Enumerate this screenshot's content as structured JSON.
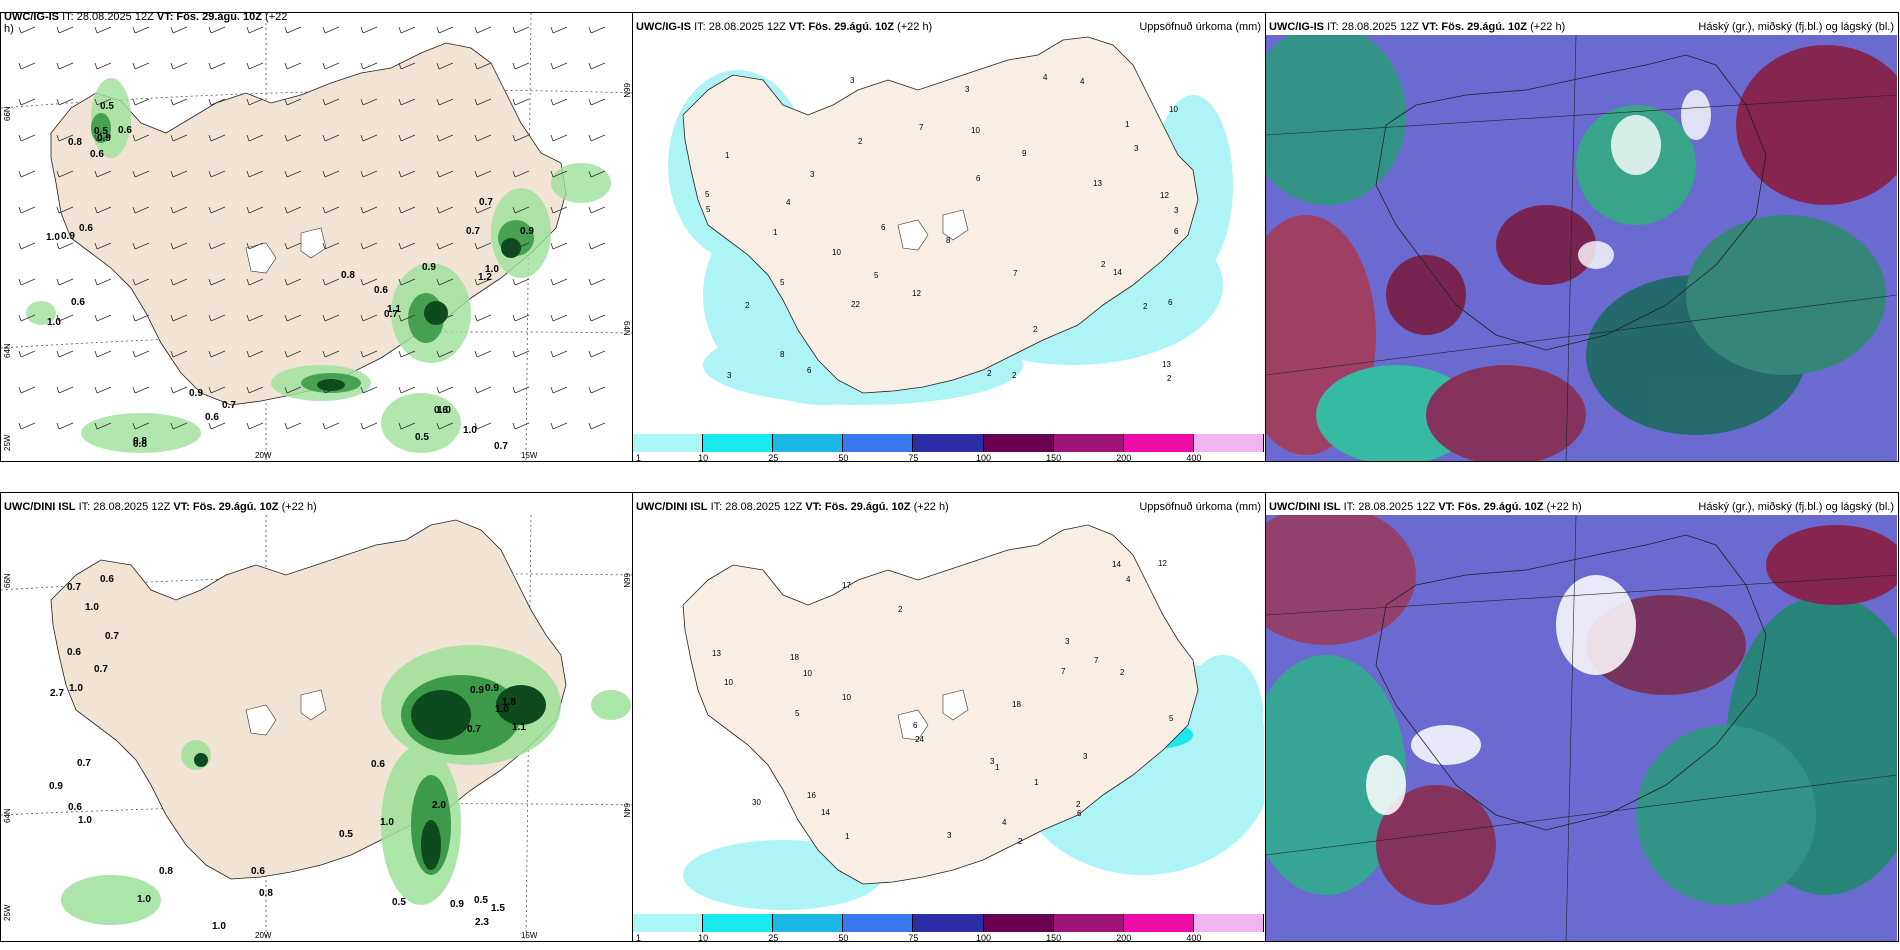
{
  "panels": {
    "top_left": {
      "header": {
        "model": "UWC/IG-IS",
        "it": "IT: 28.08.2025 12Z",
        "vt": "VT: Fös. 29.ágú. 10Z",
        "lead": "(+22",
        "lead2": "h)"
      },
      "axis": {
        "lat_top": "66N",
        "lat_mid": "64N",
        "lat_bot": "25W",
        "lon_1": "20W",
        "lon_2": "15W",
        "rlat_top": "66N",
        "rlat_mid": "64N"
      },
      "values": [
        "0.6",
        "1.0",
        "1.1",
        "0.8",
        "0.9",
        "0.5",
        "0.5",
        "0.9",
        "0.9",
        "0.6",
        "0.7",
        "0.7",
        "0.8",
        "0.6",
        "0.7",
        "0.7",
        "1.2",
        "0.6",
        "0.5",
        "1.0",
        "0.6",
        "0.8",
        "1.0",
        "1.0",
        "0.9",
        "0.6",
        "0.8",
        "0.9",
        "0.7",
        "1.0",
        "0.6"
      ]
    },
    "top_mid": {
      "header": {
        "model": "UWC/IG-IS",
        "it": "IT: 28.08.2025 12Z",
        "vt": "VT: Fös. 29.ágú. 10Z",
        "lead": "(+22 h)"
      },
      "title_right": "Uppsöfnuð úrkoma (mm)",
      "colorbar": {
        "colors": [
          "#aaf6f8",
          "#19e8ee",
          "#1bb8e6",
          "#3a78f0",
          "#2c2ca8",
          "#6a0050",
          "#a01478",
          "#ec0ca8",
          "#f0b4f0"
        ],
        "ticks": [
          "1",
          "10",
          "25",
          "50",
          "75",
          "100",
          "150",
          "200",
          "400"
        ]
      }
    },
    "top_right": {
      "header": {
        "model": "UWC/IG-IS",
        "it": "IT: 28.08.2025 12Z",
        "vt": "VT: Fös. 29.ágú. 10Z",
        "lead": "(+22 h)"
      },
      "title_right": "Háský (gr.), miðský (fj.bl.) og lágský (bl.)"
    },
    "bottom_left": {
      "header": {
        "model": "UWC/DINI ISL",
        "it": "IT: 28.08.2025 12Z",
        "vt": "VT: Fös. 29.ágú. 10Z",
        "lead": "(+22 h)"
      },
      "axis": {
        "lat_top": "66N",
        "lat_mid": "64N",
        "lat_bot": "25W",
        "lon_1": "20W",
        "lon_2": "15W",
        "rlat_top": "66N",
        "rlat_mid": "64N"
      },
      "values": [
        "0.7",
        "0.7",
        "0.5",
        "0.8",
        "1.8",
        "2.3",
        "0.6",
        "1.0",
        "0.6",
        "1.0",
        "0.9",
        "0.5",
        "0.7",
        "1.0",
        "1.0",
        "0.8",
        "1.1",
        "0.9",
        "1.0",
        "0.9",
        "0.7",
        "0.6",
        "1.0",
        "1.5",
        "0.6",
        "2.7",
        "2.0",
        "1.0",
        "0.9",
        "0.5",
        "0.7",
        "0.6"
      ]
    },
    "bottom_mid": {
      "header": {
        "model": "UWC/DINI ISL",
        "it": "IT: 28.08.2025 12Z",
        "vt": "VT: Fös. 29.ágú. 10Z",
        "lead": "(+22 h)"
      },
      "title_right": "Uppsöfnuð úrkoma (mm)",
      "colorbar": {
        "colors": [
          "#aaf6f8",
          "#19e8ee",
          "#1bb8e6",
          "#3a78f0",
          "#2c2ca8",
          "#6a0050",
          "#a01478",
          "#ec0ca8",
          "#f0b4f0"
        ],
        "ticks": [
          "1",
          "10",
          "25",
          "50",
          "75",
          "100",
          "150",
          "200",
          "400"
        ]
      }
    },
    "bottom_right": {
      "header": {
        "model": "UWC/DINI ISL",
        "it": "IT: 28.08.2025 12Z",
        "vt": "VT: Fös. 29.ágú. 10Z",
        "lead": "(+22 h)"
      },
      "title_right": "Háský (gr.), miðský (fj.bl.) og lágský (bl.)"
    }
  },
  "top_mid_numbers": [
    "2",
    "12",
    "9",
    "3",
    "6",
    "6",
    "5",
    "4",
    "2",
    "1",
    "3",
    "14",
    "13",
    "22",
    "2",
    "8",
    "10",
    "5",
    "3",
    "7",
    "13",
    "10",
    "8",
    "5",
    "6",
    "4",
    "3",
    "2",
    "2",
    "10",
    "6",
    "2",
    "1",
    "3",
    "4",
    "5",
    "6",
    "7",
    "3",
    "2",
    "2",
    "1",
    "12"
  ],
  "bottom_mid_numbers": [
    "2",
    "17",
    "16",
    "18",
    "7",
    "4",
    "5",
    "10",
    "24",
    "14",
    "30",
    "13",
    "6",
    "3",
    "7",
    "14",
    "10",
    "4",
    "3",
    "2",
    "2",
    "1",
    "1",
    "6",
    "18",
    "3",
    "5",
    "10",
    "3",
    "2",
    "1",
    "12"
  ]
}
